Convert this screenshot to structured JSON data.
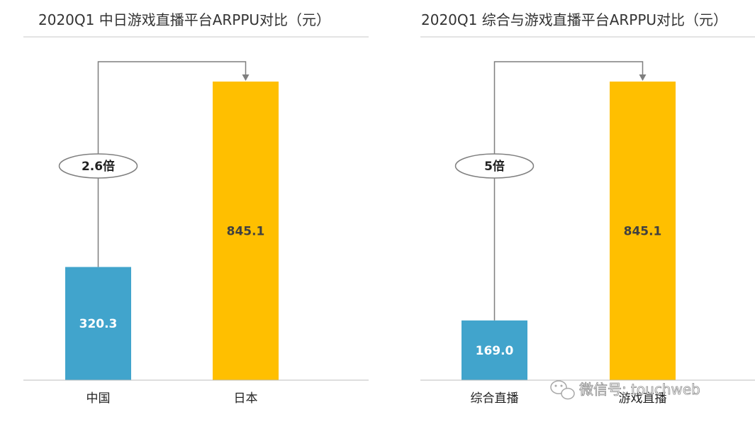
{
  "chart_data": [
    {
      "type": "bar",
      "title": "2020Q1 中日游戏直播平台ARPPU对比（元）",
      "categories": [
        "中国",
        "日本"
      ],
      "values": [
        320.3,
        845.1
      ],
      "value_labels": [
        "320.3",
        "845.1"
      ],
      "colors": [
        "#41A4CC",
        "#FFBF00"
      ],
      "ratio_label": "2.6倍",
      "ylim": [
        0,
        900
      ]
    },
    {
      "type": "bar",
      "title": "2020Q1 综合与游戏直播平台ARPPU对比（元）",
      "categories": [
        "综合直播",
        "游戏直播"
      ],
      "values": [
        169.0,
        845.1
      ],
      "value_labels": [
        "169.0",
        "845.1"
      ],
      "colors": [
        "#41A4CC",
        "#FFBF00"
      ],
      "ratio_label": "5倍",
      "ylim": [
        0,
        900
      ]
    }
  ],
  "watermark": {
    "text": "微信号: touchweb"
  }
}
